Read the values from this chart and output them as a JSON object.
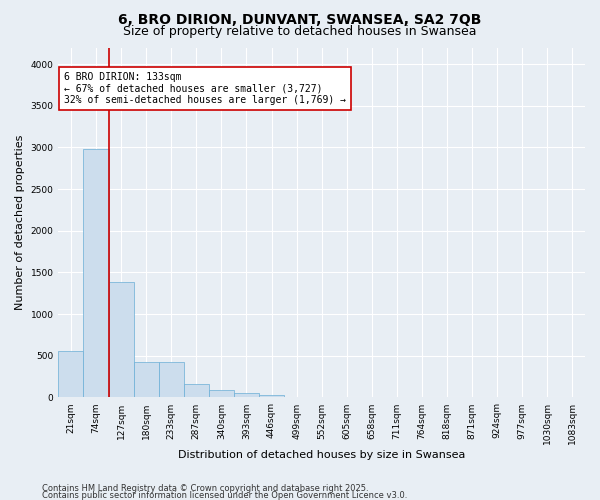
{
  "title": "6, BRO DIRION, DUNVANT, SWANSEA, SA2 7QB",
  "subtitle": "Size of property relative to detached houses in Swansea",
  "xlabel": "Distribution of detached houses by size in Swansea",
  "ylabel": "Number of detached properties",
  "bar_color": "#ccdded",
  "bar_edge_color": "#6aaed6",
  "categories": [
    "21sqm",
    "74sqm",
    "127sqm",
    "180sqm",
    "233sqm",
    "287sqm",
    "340sqm",
    "393sqm",
    "446sqm",
    "499sqm",
    "552sqm",
    "605sqm",
    "658sqm",
    "711sqm",
    "764sqm",
    "818sqm",
    "871sqm",
    "924sqm",
    "977sqm",
    "1030sqm",
    "1083sqm"
  ],
  "values": [
    560,
    2980,
    1380,
    420,
    420,
    160,
    90,
    50,
    30,
    0,
    0,
    0,
    0,
    0,
    0,
    0,
    0,
    0,
    0,
    0,
    0
  ],
  "ylim": [
    0,
    4200
  ],
  "yticks": [
    0,
    500,
    1000,
    1500,
    2000,
    2500,
    3000,
    3500,
    4000
  ],
  "red_line_index": 2,
  "annotation_line1": "6 BRO DIRION: 133sqm",
  "annotation_line2": "← 67% of detached houses are smaller (3,727)",
  "annotation_line3": "32% of semi-detached houses are larger (1,769) →",
  "annotation_box_color": "#ffffff",
  "annotation_box_edge": "#cc0000",
  "red_line_color": "#cc0000",
  "footer1": "Contains HM Land Registry data © Crown copyright and database right 2025.",
  "footer2": "Contains public sector information licensed under the Open Government Licence v3.0.",
  "background_color": "#e8eef4",
  "plot_bg_color": "#e8eef4",
  "grid_color": "#ffffff",
  "title_fontsize": 10,
  "subtitle_fontsize": 9,
  "axis_label_fontsize": 8,
  "tick_fontsize": 6.5,
  "annotation_fontsize": 7,
  "footer_fontsize": 6
}
